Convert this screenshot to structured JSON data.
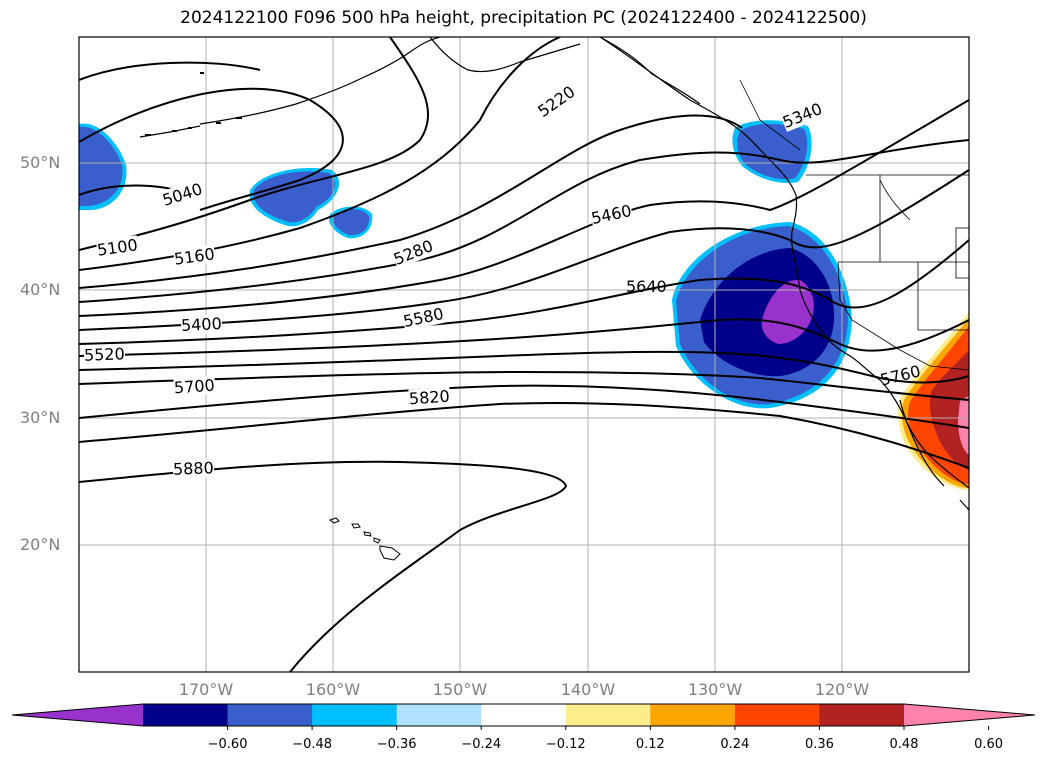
{
  "title": "2024122100 F096 500 hPa height, precipitation PC (2024122400 - 2024122500)",
  "map": {
    "lat_labels": [
      "50°N",
      "40°N",
      "30°N",
      "20°N"
    ],
    "lon_labels": [
      "170°W",
      "160°W",
      "150°W",
      "140°W",
      "130°W",
      "120°W"
    ],
    "contour_labels": [
      "5040",
      "5100",
      "5160",
      "5220",
      "5280",
      "5340",
      "5400",
      "5460",
      "5520",
      "5580",
      "5640",
      "5700",
      "5760",
      "5820",
      "5880"
    ],
    "grid": true
  },
  "colorbar": {
    "ticks": [
      "−0.60",
      "−0.48",
      "−0.36",
      "−0.24",
      "−0.12",
      "0.12",
      "0.24",
      "0.36",
      "0.48",
      "0.60"
    ],
    "colors": [
      "#9932cc",
      "#00008b",
      "#3a5fcd",
      "#00bfff",
      "#b0e2ff",
      "#ffffff",
      "#ffec8b",
      "#ffa500",
      "#ff4500",
      "#b22222",
      "#ff82ab"
    ],
    "extend": "both"
  }
}
